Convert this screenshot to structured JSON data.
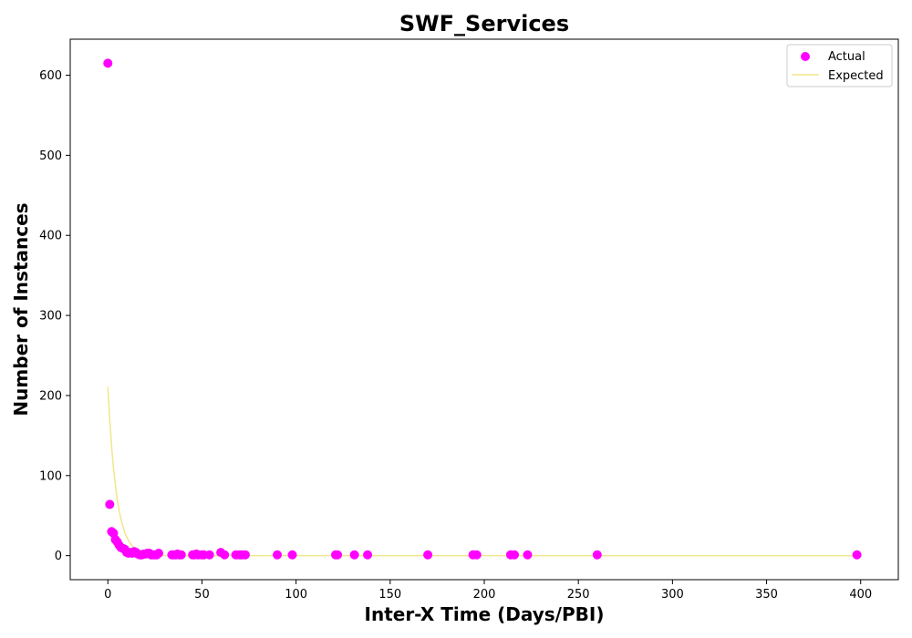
{
  "chart_data": {
    "type": "scatter",
    "title": "SWF_Services",
    "xlabel": "Inter-X Time (Days/PBI)",
    "ylabel": "Number of Instances",
    "xlim": [
      -20,
      420
    ],
    "ylim": [
      -30,
      645
    ],
    "xticks": [
      0,
      50,
      100,
      150,
      200,
      250,
      300,
      350,
      400
    ],
    "yticks": [
      0,
      100,
      200,
      300,
      400,
      500,
      600
    ],
    "grid": false,
    "legend_position": "top-right",
    "series": [
      {
        "name": "Actual",
        "kind": "scatter",
        "color": "#ff00ff",
        "points": [
          [
            0,
            615
          ],
          [
            1,
            64
          ],
          [
            2,
            30
          ],
          [
            3,
            28
          ],
          [
            4,
            20
          ],
          [
            5,
            17
          ],
          [
            6,
            13
          ],
          [
            7,
            10
          ],
          [
            8,
            9
          ],
          [
            9,
            8
          ],
          [
            10,
            4
          ],
          [
            11,
            3
          ],
          [
            12,
            4
          ],
          [
            13,
            3
          ],
          [
            14,
            5
          ],
          [
            15,
            4
          ],
          [
            16,
            2
          ],
          [
            17,
            1
          ],
          [
            18,
            1
          ],
          [
            19,
            2
          ],
          [
            20,
            2
          ],
          [
            21,
            3
          ],
          [
            22,
            3
          ],
          [
            23,
            1
          ],
          [
            24,
            1
          ],
          [
            25,
            1
          ],
          [
            26,
            1
          ],
          [
            27,
            3
          ],
          [
            34,
            1
          ],
          [
            35,
            1
          ],
          [
            36,
            1
          ],
          [
            37,
            2
          ],
          [
            38,
            1
          ],
          [
            39,
            1
          ],
          [
            45,
            1
          ],
          [
            46,
            1
          ],
          [
            47,
            2
          ],
          [
            48,
            1
          ],
          [
            50,
            1
          ],
          [
            51,
            1
          ],
          [
            54,
            1
          ],
          [
            60,
            4
          ],
          [
            62,
            1
          ],
          [
            68,
            1
          ],
          [
            70,
            1
          ],
          [
            71,
            1
          ],
          [
            73,
            1
          ],
          [
            90,
            1
          ],
          [
            98,
            1
          ],
          [
            121,
            1
          ],
          [
            122,
            1
          ],
          [
            131,
            1
          ],
          [
            138,
            1
          ],
          [
            170,
            1
          ],
          [
            194,
            1
          ],
          [
            196,
            1
          ],
          [
            214,
            1
          ],
          [
            216,
            1
          ],
          [
            223,
            1
          ],
          [
            260,
            1
          ],
          [
            398,
            1
          ]
        ]
      },
      {
        "name": "Expected",
        "kind": "line",
        "color": "#f0e68c",
        "function": "exponential",
        "y0": 211,
        "decay_rate": 0.22,
        "x_range": [
          0,
          398
        ]
      }
    ]
  }
}
